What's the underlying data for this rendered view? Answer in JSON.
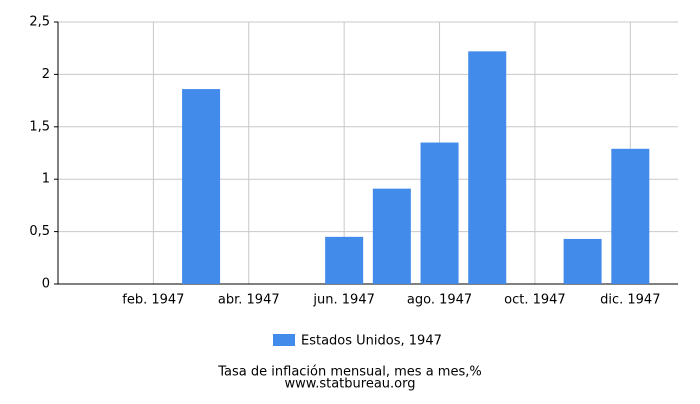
{
  "chart_data": {
    "type": "bar",
    "categories": [
      null,
      "feb. 1947",
      null,
      "abr. 1947",
      null,
      "jun. 1947",
      null,
      "ago. 1947",
      null,
      "oct. 1947",
      null,
      "dic. 1947"
    ],
    "series": [
      {
        "name": "Estados Unidos, 1947",
        "color": "#428bea",
        "values": [
          0,
          0,
          1.86,
          0,
          0,
          0.45,
          0.91,
          1.35,
          2.22,
          0,
          0.43,
          1.29
        ]
      }
    ],
    "ylim": [
      0,
      2.5
    ],
    "yticks": [
      0,
      {
        "value": 0.5,
        "label": "0,5"
      },
      1,
      {
        "value": 1.5,
        "label": "1,5"
      },
      2,
      {
        "value": 2.5,
        "label": "2,5"
      }
    ],
    "grid": true,
    "caption": "Tasa de inflación mensual, mes a mes,%",
    "source": "www.statbureau.org"
  }
}
